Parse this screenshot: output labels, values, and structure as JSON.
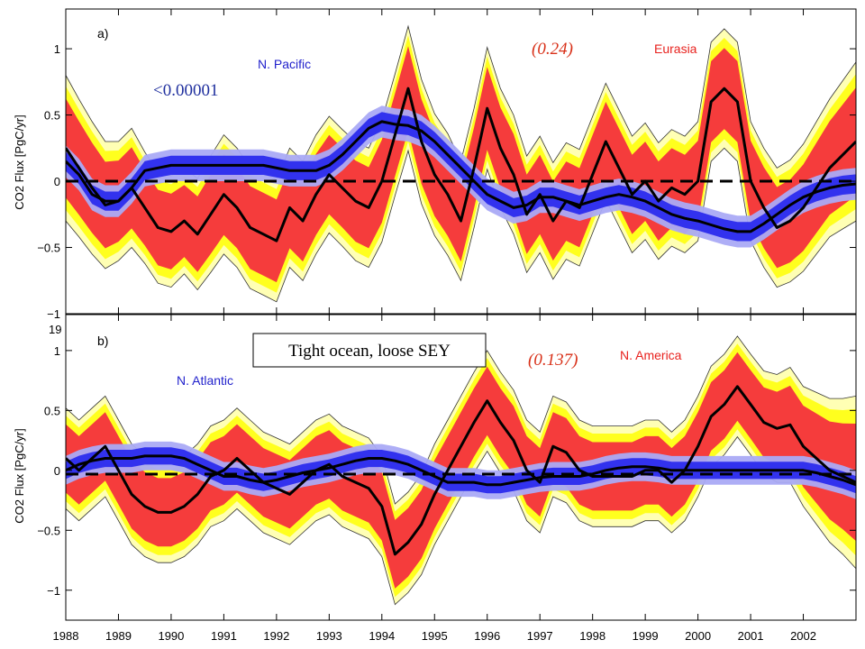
{
  "chart_data": [
    {
      "type": "line",
      "panel": "a)",
      "ylabel": "CO2 Flux [PgC/yr]",
      "ylim": [
        -1,
        1.3
      ],
      "yticks": [
        "1",
        "0.5",
        "0",
        "−0.5",
        "−1"
      ],
      "ytick_values": [
        1,
        0.5,
        0,
        -0.5,
        -1
      ],
      "xlim": [
        1988,
        2003
      ],
      "zero_line": "dashed",
      "legend": {
        "ocean": "N. Pacific",
        "land": "Eurasia"
      },
      "annotations": {
        "ocean_value": "<0.00001",
        "land_value": "(0.24)"
      },
      "colors": {
        "land_inner": "#f53c3c",
        "land_mid": "#ffff1e",
        "land_outer": "#ffffb4",
        "ocean_inner": "#3232ee",
        "ocean_outer": "#aaaaf5",
        "mean": "#000000"
      },
      "series": [
        {
          "name": "Eurasia",
          "x": [
            1988.0,
            1988.25,
            1988.5,
            1988.75,
            1989.0,
            1989.25,
            1989.5,
            1989.75,
            1990.0,
            1990.25,
            1990.5,
            1990.75,
            1991.0,
            1991.25,
            1991.5,
            1991.75,
            1992.0,
            1992.25,
            1992.5,
            1992.75,
            1993.0,
            1993.25,
            1993.5,
            1993.75,
            1994.0,
            1994.25,
            1994.5,
            1994.75,
            1995.0,
            1995.25,
            1995.5,
            1995.75,
            1996.0,
            1996.25,
            1996.5,
            1996.75,
            1997.0,
            1997.25,
            1997.5,
            1997.75,
            1998.0,
            1998.25,
            1998.5,
            1998.75,
            1999.0,
            1999.25,
            1999.5,
            1999.75,
            2000.0,
            2000.25,
            2000.5,
            2000.75,
            2001.0,
            2001.25,
            2001.5,
            2001.75,
            2002.0,
            2002.25,
            2002.5,
            2002.75,
            2003.0
          ],
          "mean": [
            0.25,
            0.1,
            -0.05,
            -0.18,
            -0.15,
            -0.05,
            -0.2,
            -0.35,
            -0.38,
            -0.3,
            -0.4,
            -0.25,
            -0.1,
            -0.2,
            -0.35,
            -0.4,
            -0.45,
            -0.2,
            -0.3,
            -0.1,
            0.05,
            -0.05,
            -0.15,
            -0.2,
            0.0,
            0.35,
            0.7,
            0.3,
            0.05,
            -0.1,
            -0.3,
            0.1,
            0.55,
            0.25,
            0.05,
            -0.25,
            -0.1,
            -0.3,
            -0.15,
            -0.2,
            0.05,
            0.3,
            0.1,
            -0.1,
            0.0,
            -0.15,
            -0.05,
            -0.1,
            0.0,
            0.6,
            0.7,
            0.6,
            0.0,
            -0.2,
            -0.35,
            -0.3,
            -0.2,
            -0.05,
            0.1,
            0.2,
            0.3
          ],
          "halfwidth": [
            0.55,
            0.52,
            0.5,
            0.48,
            0.45,
            0.45,
            0.42,
            0.42,
            0.42,
            0.4,
            0.42,
            0.44,
            0.45,
            0.45,
            0.46,
            0.46,
            0.46,
            0.45,
            0.45,
            0.45,
            0.44,
            0.44,
            0.45,
            0.45,
            0.46,
            0.46,
            0.47,
            0.47,
            0.46,
            0.46,
            0.45,
            0.45,
            0.46,
            0.45,
            0.45,
            0.44,
            0.44,
            0.44,
            0.44,
            0.44,
            0.44,
            0.44,
            0.44,
            0.44,
            0.44,
            0.44,
            0.44,
            0.44,
            0.45,
            0.45,
            0.45,
            0.45,
            0.45,
            0.45,
            0.45,
            0.46,
            0.48,
            0.5,
            0.52,
            0.56,
            0.6
          ]
        },
        {
          "name": "N. Pacific",
          "x": [
            1988.0,
            1988.25,
            1988.5,
            1988.75,
            1989.0,
            1989.25,
            1989.5,
            1989.75,
            1990.0,
            1990.25,
            1990.5,
            1990.75,
            1991.0,
            1991.25,
            1991.5,
            1991.75,
            1992.0,
            1992.25,
            1992.5,
            1992.75,
            1993.0,
            1993.25,
            1993.5,
            1993.75,
            1994.0,
            1994.25,
            1994.5,
            1994.75,
            1995.0,
            1995.25,
            1995.5,
            1995.75,
            1996.0,
            1996.25,
            1996.5,
            1996.75,
            1997.0,
            1997.25,
            1997.5,
            1997.75,
            1998.0,
            1998.25,
            1998.5,
            1998.75,
            1999.0,
            1999.25,
            1999.5,
            1999.75,
            2000.0,
            2000.25,
            2000.5,
            2000.75,
            2001.0,
            2001.25,
            2001.5,
            2001.75,
            2002.0,
            2002.25,
            2002.5,
            2002.75,
            2003.0
          ],
          "mean": [
            0.15,
            0.05,
            -0.1,
            -0.15,
            -0.15,
            -0.05,
            0.08,
            0.1,
            0.12,
            0.12,
            0.12,
            0.12,
            0.12,
            0.12,
            0.12,
            0.12,
            0.1,
            0.08,
            0.08,
            0.08,
            0.12,
            0.2,
            0.3,
            0.4,
            0.45,
            0.43,
            0.42,
            0.38,
            0.3,
            0.2,
            0.1,
            0.0,
            -0.1,
            -0.15,
            -0.2,
            -0.18,
            -0.12,
            -0.12,
            -0.15,
            -0.18,
            -0.15,
            -0.12,
            -0.1,
            -0.12,
            -0.15,
            -0.2,
            -0.25,
            -0.28,
            -0.3,
            -0.33,
            -0.36,
            -0.38,
            -0.38,
            -0.32,
            -0.25,
            -0.18,
            -0.12,
            -0.08,
            -0.05,
            -0.03,
            -0.02
          ],
          "halfwidth": [
            0.12,
            0.12,
            0.12,
            0.12,
            0.12,
            0.12,
            0.12,
            0.12,
            0.12,
            0.12,
            0.12,
            0.12,
            0.12,
            0.12,
            0.12,
            0.12,
            0.12,
            0.12,
            0.12,
            0.12,
            0.12,
            0.12,
            0.12,
            0.12,
            0.12,
            0.12,
            0.12,
            0.12,
            0.12,
            0.12,
            0.12,
            0.12,
            0.12,
            0.12,
            0.12,
            0.12,
            0.12,
            0.12,
            0.12,
            0.12,
            0.12,
            0.12,
            0.12,
            0.12,
            0.12,
            0.12,
            0.12,
            0.12,
            0.12,
            0.12,
            0.12,
            0.12,
            0.12,
            0.12,
            0.12,
            0.12,
            0.12,
            0.12,
            0.12,
            0.12,
            0.12
          ]
        }
      ]
    },
    {
      "type": "line",
      "panel": "b)",
      "ylabel": "CO2 Flux [PgC/yr]",
      "ylim": [
        -1.25,
        1.3
      ],
      "yticks": [
        "1",
        "0.5",
        "0",
        "−0.5",
        "−1"
      ],
      "ytick_values": [
        1,
        0.5,
        0,
        -0.5,
        -1
      ],
      "xlim": [
        1988,
        2003
      ],
      "xticks": [
        "1988",
        "1989",
        "1990",
        "1991",
        "1992",
        "1993",
        "1994",
        "1995",
        "1996",
        "1997",
        "1998",
        "1999",
        "2000",
        "2001",
        "2002"
      ],
      "xtick_values": [
        1988,
        1989,
        1990,
        1991,
        1992,
        1993,
        1994,
        1995,
        1996,
        1997,
        1998,
        1999,
        2000,
        2001,
        2002
      ],
      "zero_line": "dashed",
      "legend": {
        "ocean": "N. Atlantic",
        "land": "N. America"
      },
      "annotations": {
        "box_text": "Tight ocean, loose SEY",
        "land_value": "(0.137)"
      },
      "series": [
        {
          "name": "N. America",
          "x": [
            1988.0,
            1988.25,
            1988.5,
            1988.75,
            1989.0,
            1989.25,
            1989.5,
            1989.75,
            1990.0,
            1990.25,
            1990.5,
            1990.75,
            1991.0,
            1991.25,
            1991.5,
            1991.75,
            1992.0,
            1992.25,
            1992.5,
            1992.75,
            1993.0,
            1993.25,
            1993.5,
            1993.75,
            1994.0,
            1994.25,
            1994.5,
            1994.75,
            1995.0,
            1995.25,
            1995.5,
            1995.75,
            1996.0,
            1996.25,
            1996.5,
            1996.75,
            1997.0,
            1997.25,
            1997.5,
            1997.75,
            1998.0,
            1998.25,
            1998.5,
            1998.75,
            1999.0,
            1999.25,
            1999.5,
            1999.75,
            2000.0,
            2000.25,
            2000.5,
            2000.75,
            2001.0,
            2001.25,
            2001.5,
            2001.75,
            2002.0,
            2002.25,
            2002.5,
            2002.75,
            2003.0
          ],
          "mean": [
            0.1,
            0.0,
            0.1,
            0.2,
            0.0,
            -0.2,
            -0.3,
            -0.35,
            -0.35,
            -0.3,
            -0.2,
            -0.05,
            0.0,
            0.1,
            0.0,
            -0.1,
            -0.15,
            -0.2,
            -0.1,
            0.0,
            0.05,
            -0.05,
            -0.1,
            -0.15,
            -0.3,
            -0.7,
            -0.6,
            -0.45,
            -0.2,
            0.0,
            0.2,
            0.4,
            0.58,
            0.4,
            0.25,
            0.0,
            -0.1,
            0.2,
            0.15,
            0.0,
            -0.05,
            -0.05,
            -0.05,
            -0.05,
            0.0,
            0.0,
            -0.1,
            0.0,
            0.2,
            0.45,
            0.55,
            0.7,
            0.55,
            0.4,
            0.35,
            0.38,
            0.2,
            0.1,
            0.0,
            -0.05,
            -0.1
          ],
          "halfwidth": [
            0.42,
            0.42,
            0.42,
            0.42,
            0.42,
            0.42,
            0.42,
            0.42,
            0.42,
            0.42,
            0.42,
            0.42,
            0.42,
            0.42,
            0.42,
            0.42,
            0.42,
            0.42,
            0.42,
            0.42,
            0.42,
            0.42,
            0.42,
            0.42,
            0.42,
            0.42,
            0.42,
            0.42,
            0.42,
            0.42,
            0.42,
            0.42,
            0.42,
            0.42,
            0.42,
            0.42,
            0.42,
            0.42,
            0.42,
            0.42,
            0.42,
            0.42,
            0.42,
            0.42,
            0.42,
            0.42,
            0.42,
            0.42,
            0.42,
            0.42,
            0.42,
            0.42,
            0.42,
            0.43,
            0.45,
            0.48,
            0.5,
            0.55,
            0.6,
            0.65,
            0.72
          ]
        },
        {
          "name": "N. Atlantic",
          "x": [
            1988.0,
            1988.25,
            1988.5,
            1988.75,
            1989.0,
            1989.25,
            1989.5,
            1989.75,
            1990.0,
            1990.25,
            1990.5,
            1990.75,
            1991.0,
            1991.25,
            1991.5,
            1991.75,
            1992.0,
            1992.25,
            1992.5,
            1992.75,
            1993.0,
            1993.25,
            1993.5,
            1993.75,
            1994.0,
            1994.25,
            1994.5,
            1994.75,
            1995.0,
            1995.25,
            1995.5,
            1995.75,
            1996.0,
            1996.25,
            1996.5,
            1996.75,
            1997.0,
            1997.25,
            1997.5,
            1997.75,
            1998.0,
            1998.25,
            1998.5,
            1998.75,
            1999.0,
            1999.25,
            1999.5,
            1999.75,
            2000.0,
            2000.25,
            2000.5,
            2000.75,
            2001.0,
            2001.25,
            2001.5,
            2001.75,
            2002.0,
            2002.25,
            2002.5,
            2002.75,
            2003.0
          ],
          "mean": [
            0.0,
            0.05,
            0.08,
            0.1,
            0.1,
            0.1,
            0.12,
            0.12,
            0.12,
            0.1,
            0.05,
            0.0,
            -0.05,
            -0.05,
            -0.08,
            -0.1,
            -0.08,
            -0.05,
            -0.02,
            0.0,
            0.02,
            0.05,
            0.08,
            0.1,
            0.1,
            0.08,
            0.05,
            0.0,
            -0.05,
            -0.1,
            -0.1,
            -0.1,
            -0.12,
            -0.12,
            -0.1,
            -0.08,
            -0.06,
            -0.05,
            -0.05,
            -0.05,
            -0.03,
            0.0,
            0.02,
            0.03,
            0.03,
            0.02,
            0.0,
            0.0,
            0.0,
            0.0,
            0.0,
            0.0,
            0.0,
            0.0,
            0.0,
            0.0,
            0.0,
            -0.02,
            -0.05,
            -0.08,
            -0.12
          ],
          "halfwidth": [
            0.12,
            0.12,
            0.12,
            0.12,
            0.12,
            0.12,
            0.12,
            0.12,
            0.12,
            0.12,
            0.12,
            0.12,
            0.12,
            0.12,
            0.12,
            0.12,
            0.12,
            0.12,
            0.12,
            0.12,
            0.12,
            0.12,
            0.12,
            0.12,
            0.12,
            0.12,
            0.12,
            0.12,
            0.12,
            0.12,
            0.12,
            0.12,
            0.12,
            0.12,
            0.12,
            0.12,
            0.12,
            0.12,
            0.12,
            0.12,
            0.12,
            0.12,
            0.12,
            0.12,
            0.12,
            0.12,
            0.12,
            0.12,
            0.12,
            0.12,
            0.12,
            0.12,
            0.12,
            0.12,
            0.12,
            0.12,
            0.12,
            0.12,
            0.12,
            0.12,
            0.12
          ]
        }
      ]
    }
  ],
  "stray_text": "19"
}
